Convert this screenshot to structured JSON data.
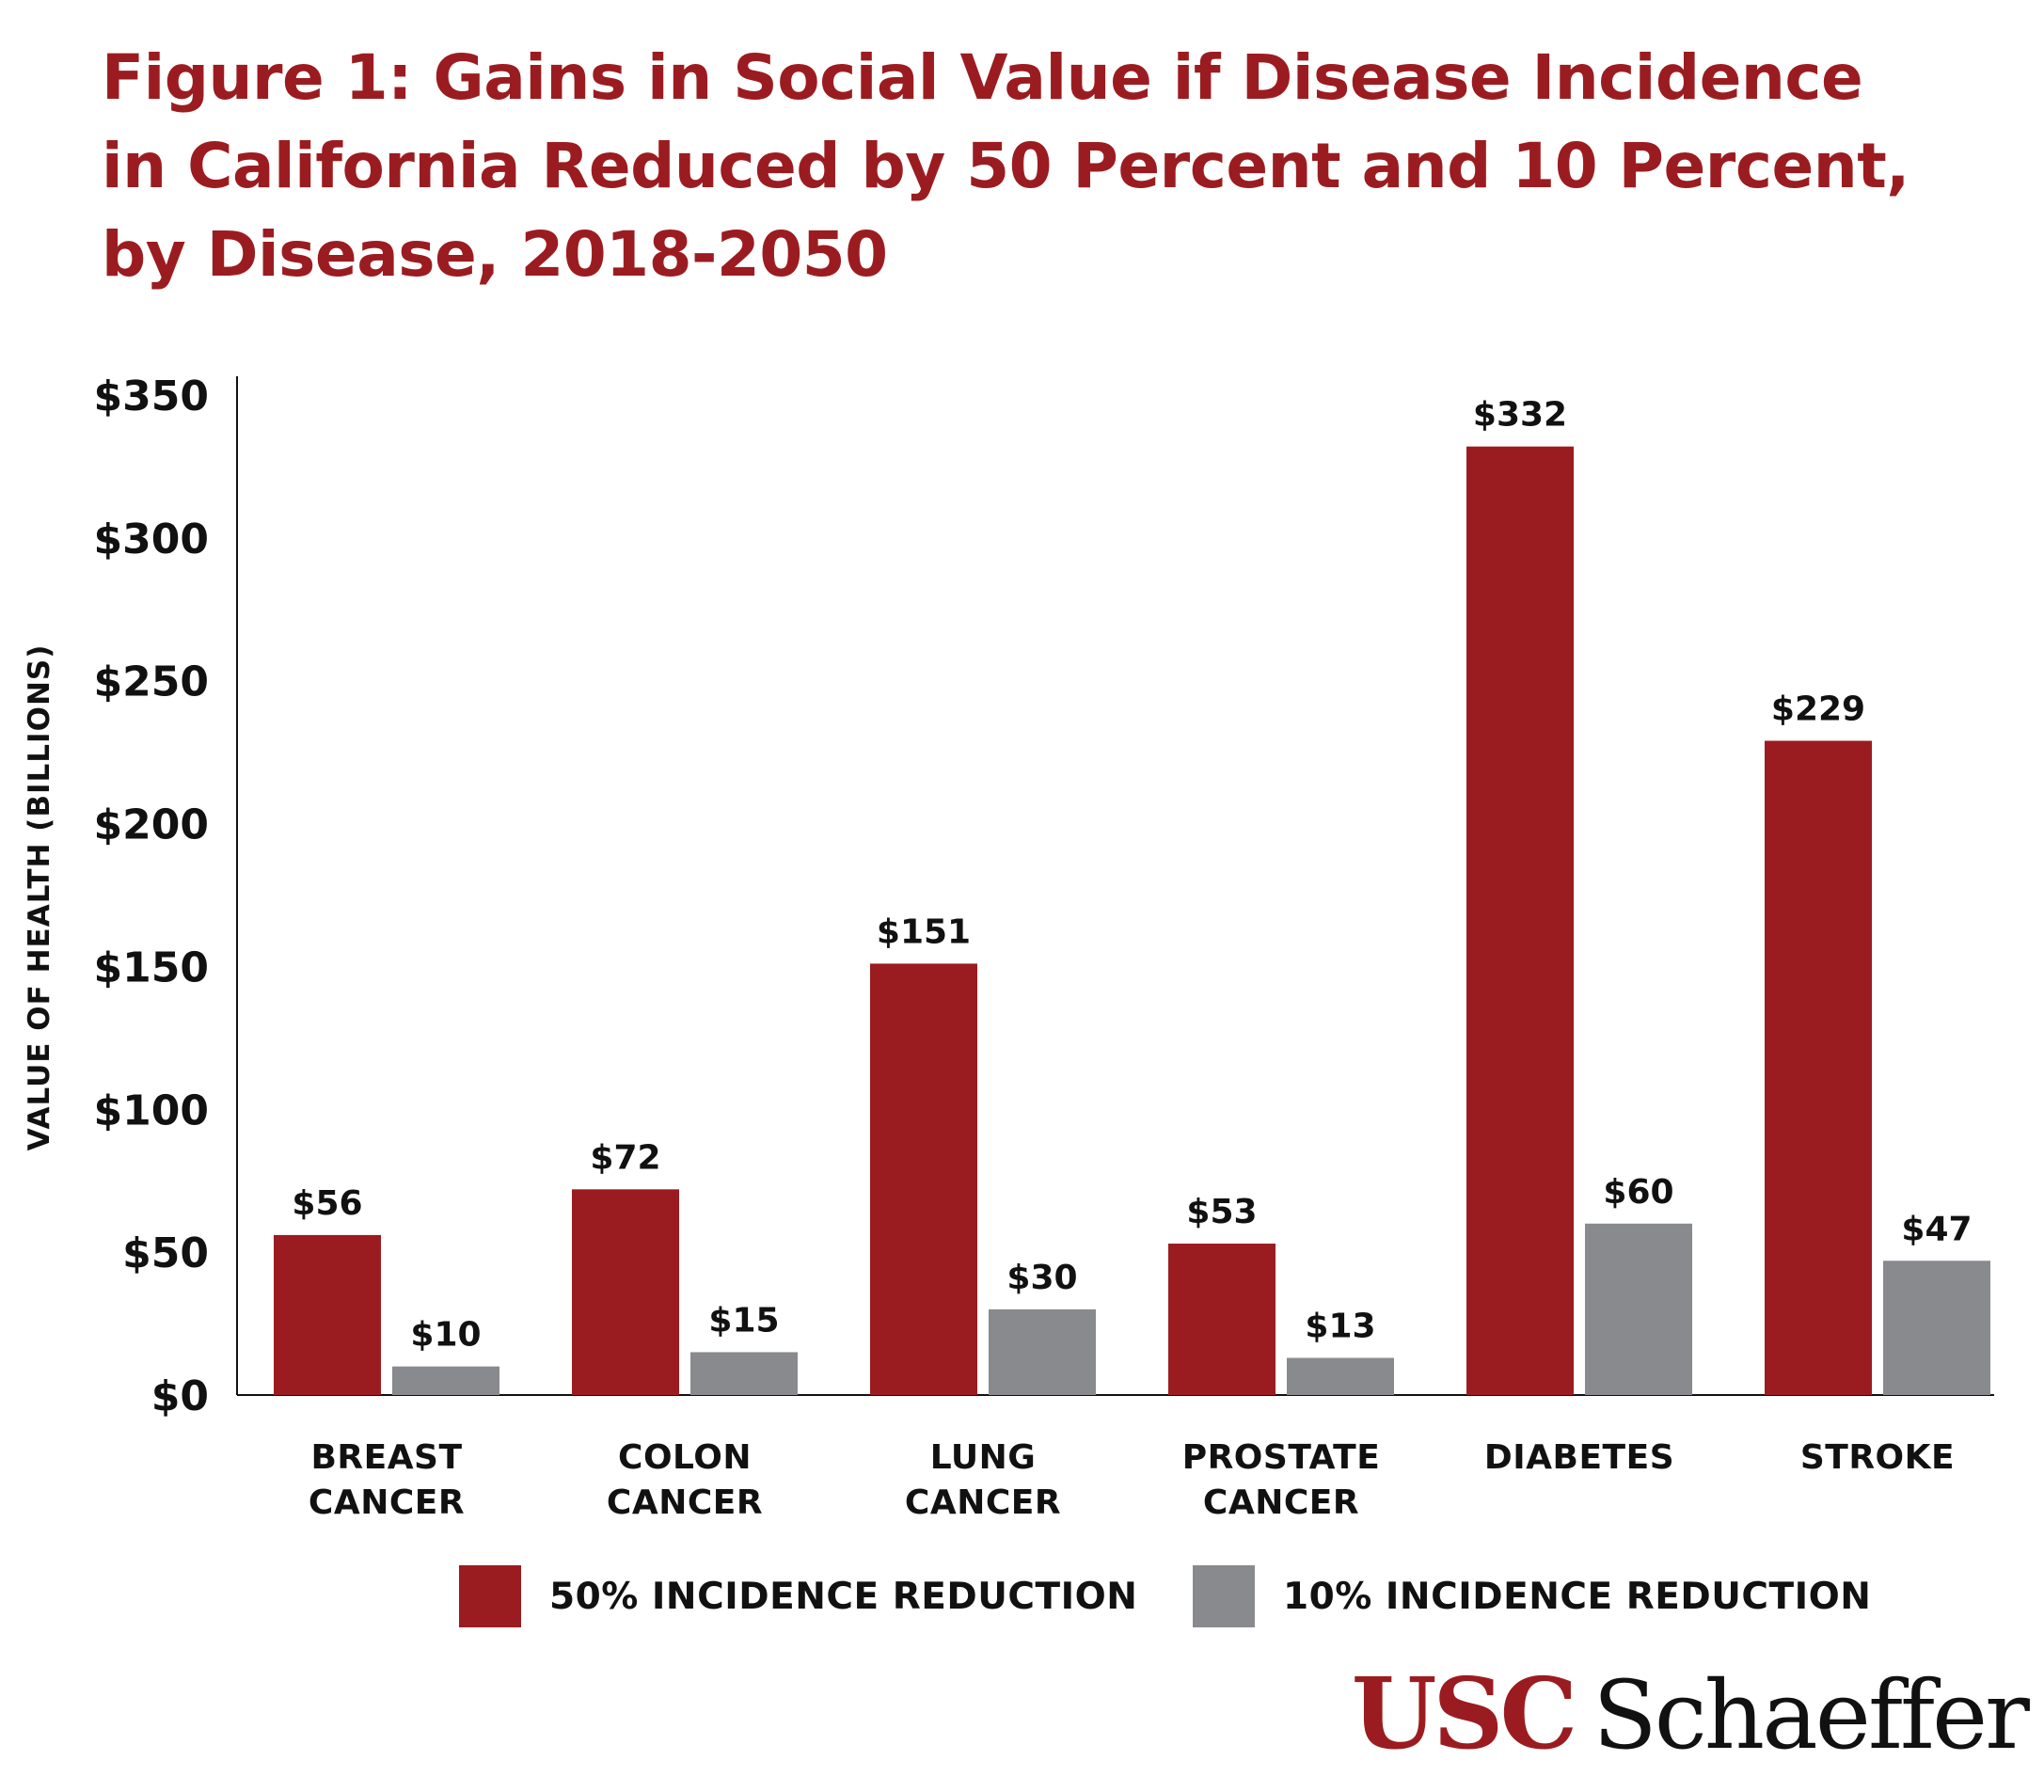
{
  "title_lines": [
    "Figure 1: Gains in Social Value if Disease Incidence",
    "in California Reduced by 50 Percent and 10 Percent,",
    "by Disease, 2018-2050"
  ],
  "logo": {
    "usc": "USC",
    "schaeffer": "Schaeffer"
  },
  "colors": {
    "series_50": "#9b1c20",
    "series_10": "#898a8d",
    "title": "#9b1c20",
    "text": "#111111"
  },
  "chart_data": {
    "type": "bar",
    "title": "Figure 1: Gains in Social Value if Disease Incidence in California Reduced by 50 Percent and 10 Percent, by Disease, 2018-2050",
    "ylabel": "VALUE OF HEALTH (BILLIONS)",
    "xlabel": "",
    "ylim": [
      0,
      350
    ],
    "yticks": [
      0,
      50,
      100,
      150,
      200,
      250,
      300,
      350
    ],
    "ytick_labels": [
      "$0",
      "$50",
      "$100",
      "$150",
      "$200",
      "$250",
      "$300",
      "$350"
    ],
    "categories": [
      [
        "BREAST",
        "CANCER"
      ],
      [
        "COLON",
        "CANCER"
      ],
      [
        "LUNG",
        "CANCER"
      ],
      [
        "PROSTATE",
        "CANCER"
      ],
      [
        "DIABETES"
      ],
      [
        "STROKE"
      ]
    ],
    "series": [
      {
        "name": "50% INCIDENCE REDUCTION",
        "values": [
          56,
          72,
          151,
          53,
          332,
          229
        ],
        "labels": [
          "$56",
          "$72",
          "$151",
          "$53",
          "$332",
          "$229"
        ]
      },
      {
        "name": "10% INCIDENCE REDUCTION",
        "values": [
          10,
          15,
          30,
          13,
          60,
          47
        ],
        "labels": [
          "$10",
          "$15",
          "$30",
          "$13",
          "$60",
          "$47"
        ]
      }
    ],
    "grid": false,
    "legend": "bottom"
  }
}
